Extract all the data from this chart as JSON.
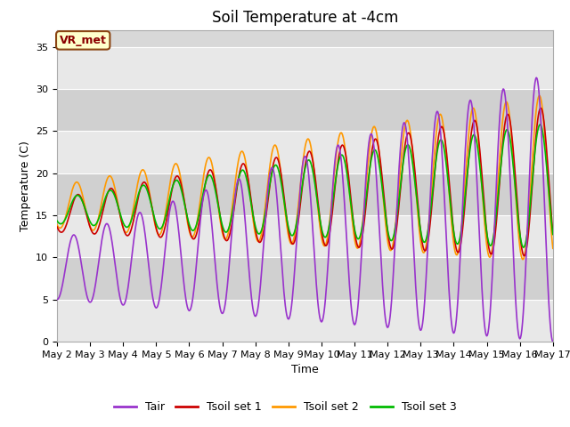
{
  "title": "Soil Temperature at -4cm",
  "xlabel": "Time",
  "ylabel": "Temperature (C)",
  "ylim": [
    0,
    37
  ],
  "yticks": [
    0,
    5,
    10,
    15,
    20,
    25,
    30,
    35
  ],
  "legend_label": "VR_met",
  "series_labels": [
    "Tair",
    "Tsoil set 1",
    "Tsoil set 2",
    "Tsoil set 3"
  ],
  "series_colors": [
    "#9933cc",
    "#cc0000",
    "#ff9900",
    "#00bb00"
  ],
  "plot_bg_color": "#d8d8d8",
  "band_color_light": "#e8e8e8",
  "band_color_dark": "#d0d0d0",
  "title_fontsize": 12,
  "axis_fontsize": 9,
  "tick_fontsize": 8,
  "legend_fontsize": 9,
  "n_days": 15,
  "pts_per_day": 48
}
